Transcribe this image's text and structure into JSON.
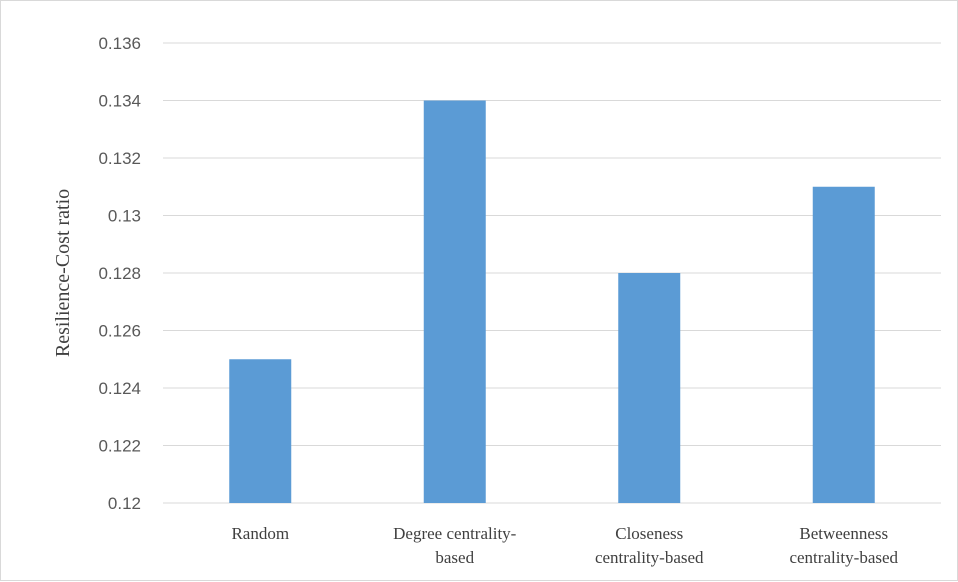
{
  "chart_data": {
    "type": "bar",
    "title": "",
    "xlabel": "",
    "ylabel": "Resilience-Cost ratio",
    "ylim": [
      0.12,
      0.136
    ],
    "yticks": [
      {
        "value": 0.12,
        "label": "0.12"
      },
      {
        "value": 0.122,
        "label": "0.122"
      },
      {
        "value": 0.124,
        "label": "0.124"
      },
      {
        "value": 0.126,
        "label": "0.126"
      },
      {
        "value": 0.128,
        "label": "0.128"
      },
      {
        "value": 0.13,
        "label": "0.13"
      },
      {
        "value": 0.132,
        "label": "0.132"
      },
      {
        "value": 0.134,
        "label": "0.134"
      },
      {
        "value": 0.136,
        "label": "0.136"
      }
    ],
    "categories": [
      [
        "Random"
      ],
      [
        "Degree centrality-",
        "based"
      ],
      [
        "Closeness",
        "centrality-based"
      ],
      [
        "Betweenness",
        "centrality-based"
      ]
    ],
    "values": [
      0.125,
      0.134,
      0.128,
      0.131
    ],
    "bar_color": "#5b9bd5",
    "grid": true,
    "legend": "none"
  }
}
